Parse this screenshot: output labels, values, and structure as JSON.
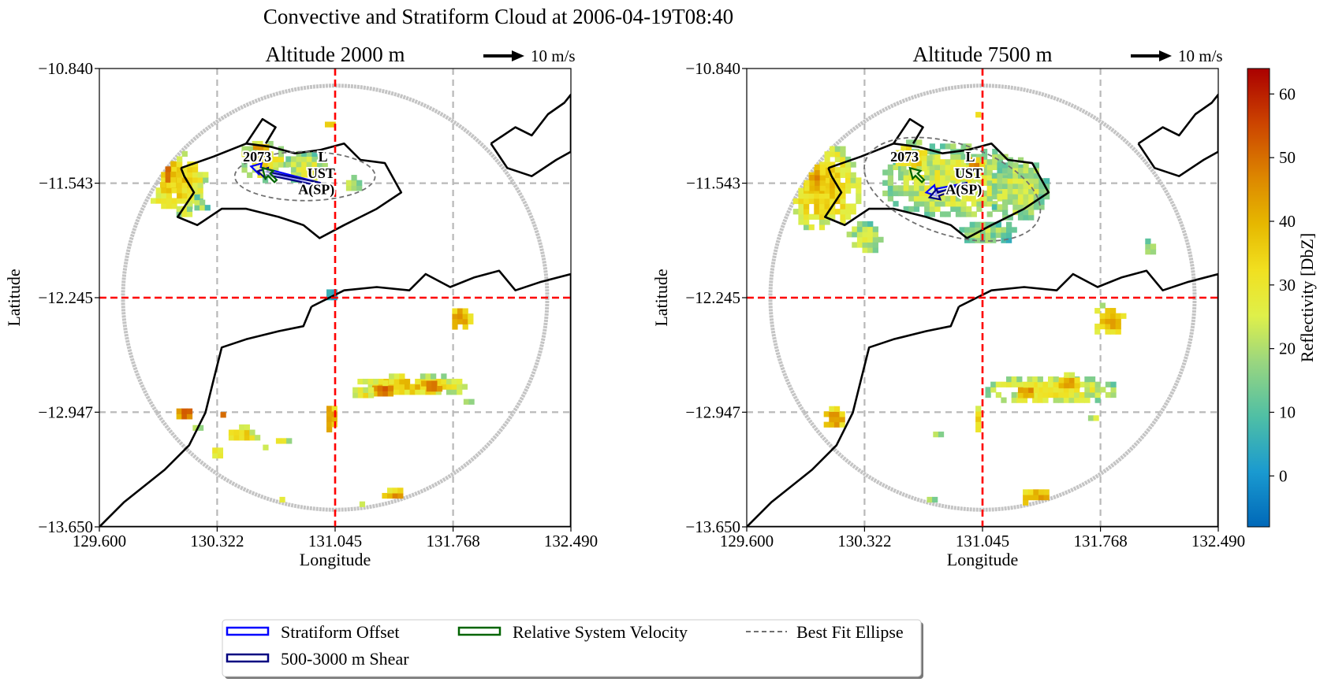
{
  "figure": {
    "title": "Convective and Stratiform Cloud at 2006-04-19T08:40",
    "colorbar": {
      "label": "Reflectivity [DbZ]",
      "ticks": [
        "0",
        "10",
        "20",
        "30",
        "40",
        "50",
        "60"
      ],
      "vmin": -8,
      "vmax": 64,
      "colormap": "HomeyerRainbow"
    },
    "legend": {
      "placement": "bottom-center",
      "entries": [
        {
          "label": "Stratiform Offset",
          "color": "#0000ff",
          "style": "arrow-patch"
        },
        {
          "label": "Relative System Velocity",
          "color": "#006400",
          "style": "arrow-patch"
        },
        {
          "label": "Best Fit Ellipse",
          "color": "#707070",
          "style": "dashed-line"
        },
        {
          "label": "500-3000 m Shear",
          "color": "#000080",
          "style": "arrow-patch"
        }
      ]
    }
  },
  "chart_data": [
    {
      "type": "heatmap",
      "title": "Altitude 2000 m",
      "xlabel": "Longitude",
      "ylabel": "Latitude",
      "xlim": [
        129.6,
        132.49
      ],
      "ylim": [
        -13.65,
        -10.84
      ],
      "xticks": [
        "129.600",
        "130.322",
        "131.045",
        "131.768",
        "132.490"
      ],
      "yticks": [
        "-10.840",
        "-11.543",
        "-12.245",
        "-12.947",
        "-13.650"
      ],
      "grid": true,
      "crosshair": {
        "lon": 131.045,
        "lat": -12.245,
        "color": "#ff0000"
      },
      "quiver_key": {
        "label": "10 m/s",
        "placement": "top-right"
      },
      "object_annotations": [
        {
          "id": "2073",
          "lon": 130.48,
          "lat": -11.41
        },
        {
          "text": "L",
          "lon": 130.97,
          "lat": -11.41
        },
        {
          "text": "UST",
          "lon": 130.96,
          "lat": -11.51
        },
        {
          "text": "A(SP)",
          "lon": 130.93,
          "lat": -11.61
        }
      ],
      "vectors": [
        {
          "name": "Stratiform Offset",
          "lon": 130.95,
          "lat": -11.55,
          "dlon": -0.42,
          "dlat": 0.11
        },
        {
          "name": "500-3000 m Shear",
          "lon": 130.95,
          "lat": -11.55,
          "dlon": -0.38,
          "dlat": 0.08
        },
        {
          "name": "Relative System Velocity",
          "lon": 130.68,
          "lat": -11.53,
          "dlon": -0.08,
          "dlat": 0.08
        }
      ],
      "ellipse": {
        "lon": 130.86,
        "lat": -11.5,
        "semi_major_lon": 0.43,
        "semi_minor_lat": 0.15,
        "angle_deg": 0
      },
      "echo_cells": [
        {
          "lon": 130.05,
          "lat": -11.55,
          "rlon": 0.2,
          "rlat": 0.18,
          "dbz": 30
        },
        {
          "lon": 130.0,
          "lat": -11.5,
          "rlon": 0.06,
          "rlat": 0.1,
          "dbz": 42
        },
        {
          "lon": 130.1,
          "lat": -11.72,
          "rlon": 0.06,
          "rlat": 0.06,
          "dbz": 22
        },
        {
          "lon": 130.2,
          "lat": -11.69,
          "rlon": 0.05,
          "rlat": 0.05,
          "dbz": 18
        },
        {
          "lon": 130.6,
          "lat": -11.42,
          "rlon": 0.16,
          "rlat": 0.12,
          "dbz": 26
        },
        {
          "lon": 130.57,
          "lat": -11.35,
          "rlon": 0.06,
          "rlat": 0.05,
          "dbz": 40
        },
        {
          "lon": 130.85,
          "lat": -11.47,
          "rlon": 0.14,
          "rlat": 0.1,
          "dbz": 22
        },
        {
          "lon": 131.0,
          "lat": -11.2,
          "rlon": 0.05,
          "rlat": 0.03,
          "dbz": 30
        },
        {
          "lon": 131.14,
          "lat": -11.57,
          "rlon": 0.06,
          "rlat": 0.05,
          "dbz": 20
        },
        {
          "lon": 130.4,
          "lat": -12.09,
          "rlon": 0.05,
          "rlat": 0.015,
          "dbz": 20
        },
        {
          "lon": 131.0,
          "lat": -12.24,
          "rlon": 0.04,
          "rlat": 0.05,
          "dbz": 5
        },
        {
          "lon": 131.8,
          "lat": -12.39,
          "rlon": 0.07,
          "rlat": 0.08,
          "dbz": 40
        },
        {
          "lon": 132.36,
          "lat": -12.56,
          "rlon": 0.03,
          "rlat": 0.04,
          "dbz": 45
        },
        {
          "lon": 131.5,
          "lat": -12.8,
          "rlon": 0.35,
          "rlat": 0.07,
          "dbz": 30
        },
        {
          "lon": 131.32,
          "lat": -12.83,
          "rlon": 0.08,
          "rlat": 0.05,
          "dbz": 45
        },
        {
          "lon": 131.62,
          "lat": -12.8,
          "rlon": 0.08,
          "rlat": 0.05,
          "dbz": 45
        },
        {
          "lon": 131.2,
          "lat": -12.85,
          "rlon": 0.08,
          "rlat": 0.04,
          "dbz": 25
        },
        {
          "lon": 131.0,
          "lat": -13.0,
          "rlon": 0.04,
          "rlat": 0.1,
          "dbz": 40
        },
        {
          "lon": 130.46,
          "lat": -13.1,
          "rlon": 0.1,
          "rlat": 0.05,
          "dbz": 28
        },
        {
          "lon": 130.7,
          "lat": -13.14,
          "rlon": 0.05,
          "rlat": 0.03,
          "dbz": 22
        },
        {
          "lon": 130.6,
          "lat": -13.19,
          "rlon": 0.03,
          "rlat": 0.02,
          "dbz": 28
        },
        {
          "lon": 130.12,
          "lat": -12.97,
          "rlon": 0.08,
          "rlat": 0.05,
          "dbz": 45
        },
        {
          "lon": 130.18,
          "lat": -13.05,
          "rlon": 0.04,
          "rlat": 0.04,
          "dbz": 22
        },
        {
          "lon": 130.35,
          "lat": -12.98,
          "rlon": 0.04,
          "rlat": 0.03,
          "dbz": 40
        },
        {
          "lon": 130.3,
          "lat": -13.22,
          "rlon": 0.04,
          "rlat": 0.04,
          "dbz": 25
        },
        {
          "lon": 131.4,
          "lat": -13.5,
          "rlon": 0.1,
          "rlat": 0.07,
          "dbz": 42
        },
        {
          "lon": 131.2,
          "lat": -13.55,
          "rlon": 0.07,
          "rlat": 0.04,
          "dbz": 25
        },
        {
          "lon": 130.7,
          "lat": -13.5,
          "rlon": 0.06,
          "rlat": 0.03,
          "dbz": 22
        },
        {
          "lon": 130.55,
          "lat": -13.5,
          "rlon": 0.05,
          "rlat": 0.03,
          "dbz": 18
        },
        {
          "lon": 131.85,
          "lat": -12.9,
          "rlon": 0.05,
          "rlat": 0.03,
          "dbz": 15
        }
      ]
    },
    {
      "type": "heatmap",
      "title": "Altitude 7500 m",
      "xlabel": "Longitude",
      "ylabel": "Latitude",
      "xlim": [
        129.6,
        132.49
      ],
      "ylim": [
        -13.65,
        -10.84
      ],
      "xticks": [
        "129.600",
        "130.322",
        "131.045",
        "131.768",
        "132.490"
      ],
      "yticks": [
        "-10.840",
        "-11.543",
        "-12.245",
        "-12.947",
        "-13.650"
      ],
      "grid": true,
      "crosshair": {
        "lon": 131.045,
        "lat": -12.245,
        "color": "#ff0000"
      },
      "quiver_key": {
        "label": "10 m/s",
        "placement": "top-right"
      },
      "object_annotations": [
        {
          "id": "2073",
          "lon": 130.48,
          "lat": -11.41
        },
        {
          "text": "L",
          "lon": 130.97,
          "lat": -11.41
        },
        {
          "text": "UST",
          "lon": 130.96,
          "lat": -11.51
        },
        {
          "text": "A(SP)",
          "lon": 130.93,
          "lat": -11.61
        }
      ],
      "vectors": [
        {
          "name": "Stratiform Offset",
          "lon": 130.95,
          "lat": -11.55,
          "dlon": -0.25,
          "dlat": -0.05
        },
        {
          "name": "500-3000 m Shear",
          "lon": 130.95,
          "lat": -11.55,
          "dlon": -0.23,
          "dlat": -0.08
        },
        {
          "name": "Relative System Velocity",
          "lon": 130.68,
          "lat": -11.53,
          "dlon": -0.08,
          "dlat": 0.08
        }
      ],
      "ellipse": {
        "lon": 130.86,
        "lat": -11.58,
        "semi_major_lon": 0.56,
        "semi_minor_lat": 0.28,
        "angle_deg": 18
      },
      "echo_cells": [
        {
          "lon": 130.05,
          "lat": -11.58,
          "rlon": 0.23,
          "rlat": 0.28,
          "dbz": 30
        },
        {
          "lon": 130.0,
          "lat": -11.52,
          "rlon": 0.08,
          "rlat": 0.1,
          "dbz": 38
        },
        {
          "lon": 130.3,
          "lat": -11.9,
          "rlon": 0.12,
          "rlat": 0.1,
          "dbz": 20
        },
        {
          "lon": 130.85,
          "lat": -11.55,
          "rlon": 0.45,
          "rlat": 0.23,
          "dbz": 22
        },
        {
          "lon": 130.6,
          "lat": -11.4,
          "rlon": 0.12,
          "rlat": 0.1,
          "dbz": 30
        },
        {
          "lon": 131.25,
          "lat": -11.6,
          "rlon": 0.18,
          "rlat": 0.2,
          "dbz": 20
        },
        {
          "lon": 131.05,
          "lat": -11.86,
          "rlon": 0.18,
          "rlat": 0.08,
          "dbz": 15
        },
        {
          "lon": 131.0,
          "lat": -11.15,
          "rlon": 0.03,
          "rlat": 0.02,
          "dbz": 35
        },
        {
          "lon": 130.98,
          "lat": -11.44,
          "rlon": 0.05,
          "rlat": 0.04,
          "dbz": 40
        },
        {
          "lon": 132.05,
          "lat": -11.95,
          "rlon": 0.04,
          "rlat": 0.06,
          "dbz": 15
        },
        {
          "lon": 131.8,
          "lat": -12.4,
          "rlon": 0.1,
          "rlat": 0.1,
          "dbz": 35
        },
        {
          "lon": 132.34,
          "lat": -12.56,
          "rlon": 0.03,
          "rlat": 0.04,
          "dbz": 40
        },
        {
          "lon": 131.45,
          "lat": -12.83,
          "rlon": 0.42,
          "rlat": 0.09,
          "dbz": 25
        },
        {
          "lon": 131.3,
          "lat": -12.84,
          "rlon": 0.07,
          "rlat": 0.05,
          "dbz": 40
        },
        {
          "lon": 131.55,
          "lat": -12.78,
          "rlon": 0.07,
          "rlat": 0.05,
          "dbz": 38
        },
        {
          "lon": 131.0,
          "lat": -13.0,
          "rlon": 0.03,
          "rlat": 0.1,
          "dbz": 25
        },
        {
          "lon": 130.12,
          "lat": -13.0,
          "rlon": 0.08,
          "rlat": 0.07,
          "dbz": 40
        },
        {
          "lon": 130.75,
          "lat": -13.1,
          "rlon": 0.04,
          "rlat": 0.03,
          "dbz": 20
        },
        {
          "lon": 131.4,
          "lat": -13.5,
          "rlon": 0.14,
          "rlat": 0.08,
          "dbz": 38
        },
        {
          "lon": 131.1,
          "lat": -13.58,
          "rlon": 0.1,
          "rlat": 0.04,
          "dbz": 22
        },
        {
          "lon": 130.7,
          "lat": -13.5,
          "rlon": 0.06,
          "rlat": 0.03,
          "dbz": 20
        },
        {
          "lon": 131.7,
          "lat": -13.0,
          "rlon": 0.04,
          "rlat": 0.03,
          "dbz": 20
        }
      ]
    }
  ]
}
